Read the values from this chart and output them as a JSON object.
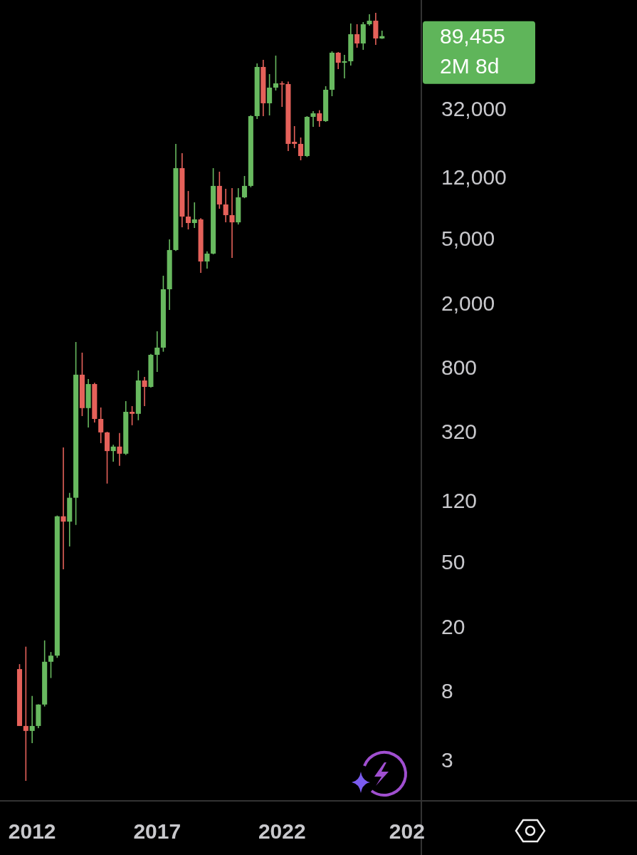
{
  "chart_data": {
    "type": "candlestick",
    "x": [
      "2011-07",
      "2011-10",
      "2012-01",
      "2012-04",
      "2012-07",
      "2012-10",
      "2013-01",
      "2013-04",
      "2013-07",
      "2013-10",
      "2014-01",
      "2014-04",
      "2014-07",
      "2014-10",
      "2015-01",
      "2015-04",
      "2015-07",
      "2015-10",
      "2016-01",
      "2016-04",
      "2016-07",
      "2016-10",
      "2017-01",
      "2017-04",
      "2017-07",
      "2017-10",
      "2018-01",
      "2018-04",
      "2018-07",
      "2018-10",
      "2019-01",
      "2019-04",
      "2019-07",
      "2019-10",
      "2020-01",
      "2020-04",
      "2020-07",
      "2020-10",
      "2021-01",
      "2021-04",
      "2021-07",
      "2021-10",
      "2022-01",
      "2022-04",
      "2022-07",
      "2022-10",
      "2023-01",
      "2023-04",
      "2023-07",
      "2023-10",
      "2024-01",
      "2024-04",
      "2024-07",
      "2024-10",
      "2025-01",
      "2025-04",
      "2025-07",
      "2025-10",
      "2026-01"
    ],
    "ohlc": [
      [
        10.9,
        11.7,
        4.85,
        4.85
      ],
      [
        4.85,
        15,
        2.22,
        4.52
      ],
      [
        4.52,
        7.43,
        3.8,
        4.85
      ],
      [
        4.85,
        6.6,
        4.7,
        6.58
      ],
      [
        6.58,
        16.4,
        6.4,
        12.1
      ],
      [
        12.1,
        13.9,
        9.6,
        13.2
      ],
      [
        13.2,
        97,
        12.8,
        96
      ],
      [
        96,
        256,
        45.2,
        89
      ],
      [
        89,
        134,
        62.5,
        125
      ],
      [
        125,
        1148,
        84.8,
        721
      ],
      [
        721,
        987,
        400,
        448
      ],
      [
        448,
        678,
        340,
        631
      ],
      [
        631,
        643,
        365,
        384
      ],
      [
        384,
        452,
        272,
        317
      ],
      [
        317,
        320,
        153,
        243
      ],
      [
        243,
        266,
        209,
        259
      ],
      [
        259,
        314,
        197,
        234
      ],
      [
        234,
        495,
        230,
        425
      ],
      [
        425,
        461,
        351,
        413
      ],
      [
        413,
        766,
        377,
        664
      ],
      [
        664,
        699,
        461,
        606
      ],
      [
        606,
        970,
        600,
        957
      ],
      [
        957,
        1338,
        750,
        1060
      ],
      [
        1060,
        2951,
        1000,
        2433
      ],
      [
        2433,
        4955,
        1815,
        4254
      ],
      [
        4254,
        19280,
        4200,
        13650
      ],
      [
        13650,
        16900,
        5885,
        6850
      ],
      [
        6850,
        9860,
        5705,
        6250
      ],
      [
        6250,
        8390,
        5820,
        6580
      ],
      [
        6580,
        6700,
        3075,
        3614
      ],
      [
        3614,
        4180,
        3267,
        4043
      ],
      [
        4043,
        13650,
        4000,
        10600
      ],
      [
        10600,
        12980,
        7660,
        8140
      ],
      [
        8140,
        10170,
        6310,
        6990
      ],
      [
        6990,
        10270,
        3803,
        6310
      ],
      [
        6310,
        10270,
        6120,
        9010
      ],
      [
        9010,
        12210,
        8900,
        10600
      ],
      [
        10600,
        29000,
        10400,
        28640
      ],
      [
        28640,
        60650,
        27490,
        57670
      ],
      [
        57670,
        63800,
        28640,
        34380
      ],
      [
        34380,
        52100,
        28910,
        42960
      ],
      [
        42960,
        67760,
        41230,
        45640
      ],
      [
        45640,
        47000,
        32660,
        45200
      ],
      [
        45200,
        46800,
        17420,
        19280
      ],
      [
        19870,
        24840,
        18140,
        19280
      ],
      [
        19280,
        21120,
        15270,
        16220
      ],
      [
        16220,
        28640,
        16000,
        28330
      ],
      [
        28330,
        30740,
        24600,
        29800
      ],
      [
        29800,
        31150,
        24600,
        26680
      ],
      [
        26680,
        43850,
        26400,
        41670
      ],
      [
        41670,
        72070,
        38040,
        70630
      ],
      [
        70630,
        71300,
        55930,
        61260
      ],
      [
        61260,
        68490,
        49000,
        62520
      ],
      [
        62520,
        107100,
        58840,
        91900
      ],
      [
        91900,
        106000,
        75840,
        80560
      ],
      [
        80560,
        109200,
        73600,
        105900
      ],
      [
        105900,
        122200,
        103800,
        111400
      ],
      [
        111400,
        124700,
        78900,
        86500
      ],
      [
        86500,
        96700,
        86000,
        89455
      ]
    ],
    "colors": [
      "#e5615a",
      "#e5615a",
      "#68b95f",
      "#68b95f",
      "#68b95f",
      "#68b95f",
      "#68b95f",
      "#e5615a",
      "#68b95f",
      "#68b95f",
      "#e5615a",
      "#68b95f",
      "#e5615a",
      "#e5615a",
      "#e5615a",
      "#68b95f",
      "#e5615a",
      "#68b95f",
      "#e5615a",
      "#68b95f",
      "#e5615a",
      "#68b95f",
      "#68b95f",
      "#68b95f",
      "#68b95f",
      "#68b95f",
      "#e5615a",
      "#e5615a",
      "#68b95f",
      "#e5615a",
      "#68b95f",
      "#68b95f",
      "#e5615a",
      "#e5615a",
      "#e5615a",
      "#68b95f",
      "#68b95f",
      "#68b95f",
      "#68b95f",
      "#e5615a",
      "#68b95f",
      "#68b95f",
      "#e5615a",
      "#e5615a",
      "#e5615a",
      "#e5615a",
      "#68b95f",
      "#68b95f",
      "#e5615a",
      "#68b95f",
      "#68b95f",
      "#e5615a",
      "#68b95f",
      "#68b95f",
      "#e5615a",
      "#68b95f",
      "#68b95f",
      "#e5615a",
      "#68b95f"
    ],
    "xlim": [
      "2010-09-18",
      "2027-07-30"
    ],
    "xticks": [
      {
        "value": "2012",
        "label": "2012"
      },
      {
        "value": "2017",
        "label": "2017"
      },
      {
        "value": "2022",
        "label": "2022"
      },
      {
        "value": "2027",
        "label": "202"
      }
    ],
    "ylim": [
      1.67,
      149600
    ],
    "yticks": [
      {
        "value": 3,
        "label": "3"
      },
      {
        "value": 8,
        "label": "8"
      },
      {
        "value": 20,
        "label": "20"
      },
      {
        "value": 50,
        "label": "50"
      },
      {
        "value": 120,
        "label": "120"
      },
      {
        "value": 320,
        "label": "320"
      },
      {
        "value": 800,
        "label": "800"
      },
      {
        "value": 2000,
        "label": "2,000"
      },
      {
        "value": 5000,
        "label": "5,000"
      },
      {
        "value": 12000,
        "label": "12,000"
      },
      {
        "value": 32000,
        "label": "32,000"
      }
    ],
    "log": true,
    "annotations": [
      "89,455",
      "2M 8d"
    ]
  }
}
